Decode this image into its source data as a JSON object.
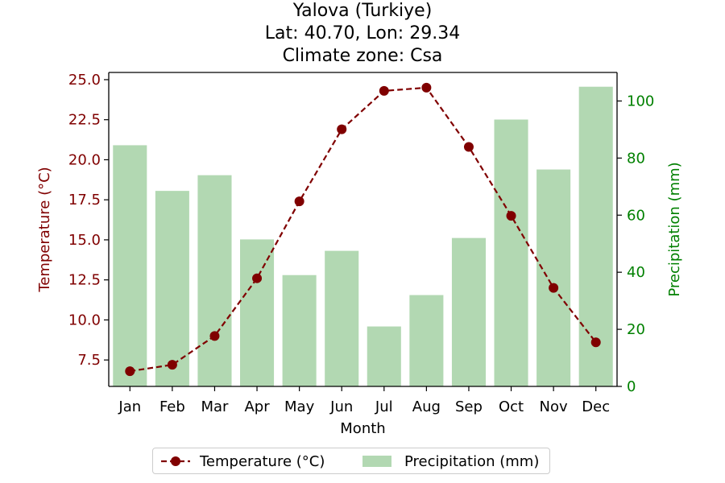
{
  "title": {
    "line1": "Yalova (Turkiye)",
    "line2": "Lat: 40.70, Lon: 29.34",
    "line3": "Climate zone: Csa"
  },
  "legend": {
    "temperature": "Temperature (°C)",
    "precipitation": "Precipitation (mm)"
  },
  "colors": {
    "temperature": "#800000",
    "precipitation_bar": "#b2d8b2",
    "precipitation_axis": "#008000"
  },
  "chart_data": {
    "type": "bar+line",
    "categories": [
      "Jan",
      "Feb",
      "Mar",
      "Apr",
      "May",
      "Jun",
      "Jul",
      "Aug",
      "Sep",
      "Oct",
      "Nov",
      "Dec"
    ],
    "xlabel": "Month",
    "series": [
      {
        "name": "Temperature (°C)",
        "type": "line",
        "axis": "left",
        "values": [
          6.8,
          7.2,
          9.0,
          12.6,
          17.4,
          21.9,
          24.3,
          24.5,
          20.8,
          16.5,
          12.0,
          8.6
        ]
      },
      {
        "name": "Precipitation (mm)",
        "type": "bar",
        "axis": "right",
        "values": [
          84.5,
          68.5,
          74.0,
          51.5,
          39.0,
          47.5,
          21.0,
          32.0,
          52.0,
          93.5,
          76.0,
          105.0
        ]
      }
    ],
    "y_left": {
      "label": "Temperature (°C)",
      "ylim": [
        5.85,
        25.45
      ],
      "ticks": [
        7.5,
        10.0,
        12.5,
        15.0,
        17.5,
        20.0,
        22.5,
        25.0
      ],
      "tick_labels": [
        "7.5",
        "10.0",
        "12.5",
        "15.0",
        "17.5",
        "20.0",
        "22.5",
        "25.0"
      ]
    },
    "y_right": {
      "label": "Precipitation (mm)",
      "ylim": [
        0,
        110
      ],
      "ticks": [
        0,
        20,
        40,
        60,
        80,
        100
      ],
      "tick_labels": [
        "0",
        "20",
        "40",
        "60",
        "80",
        "100"
      ]
    },
    "grid": false,
    "legend_position": "bottom-center"
  }
}
